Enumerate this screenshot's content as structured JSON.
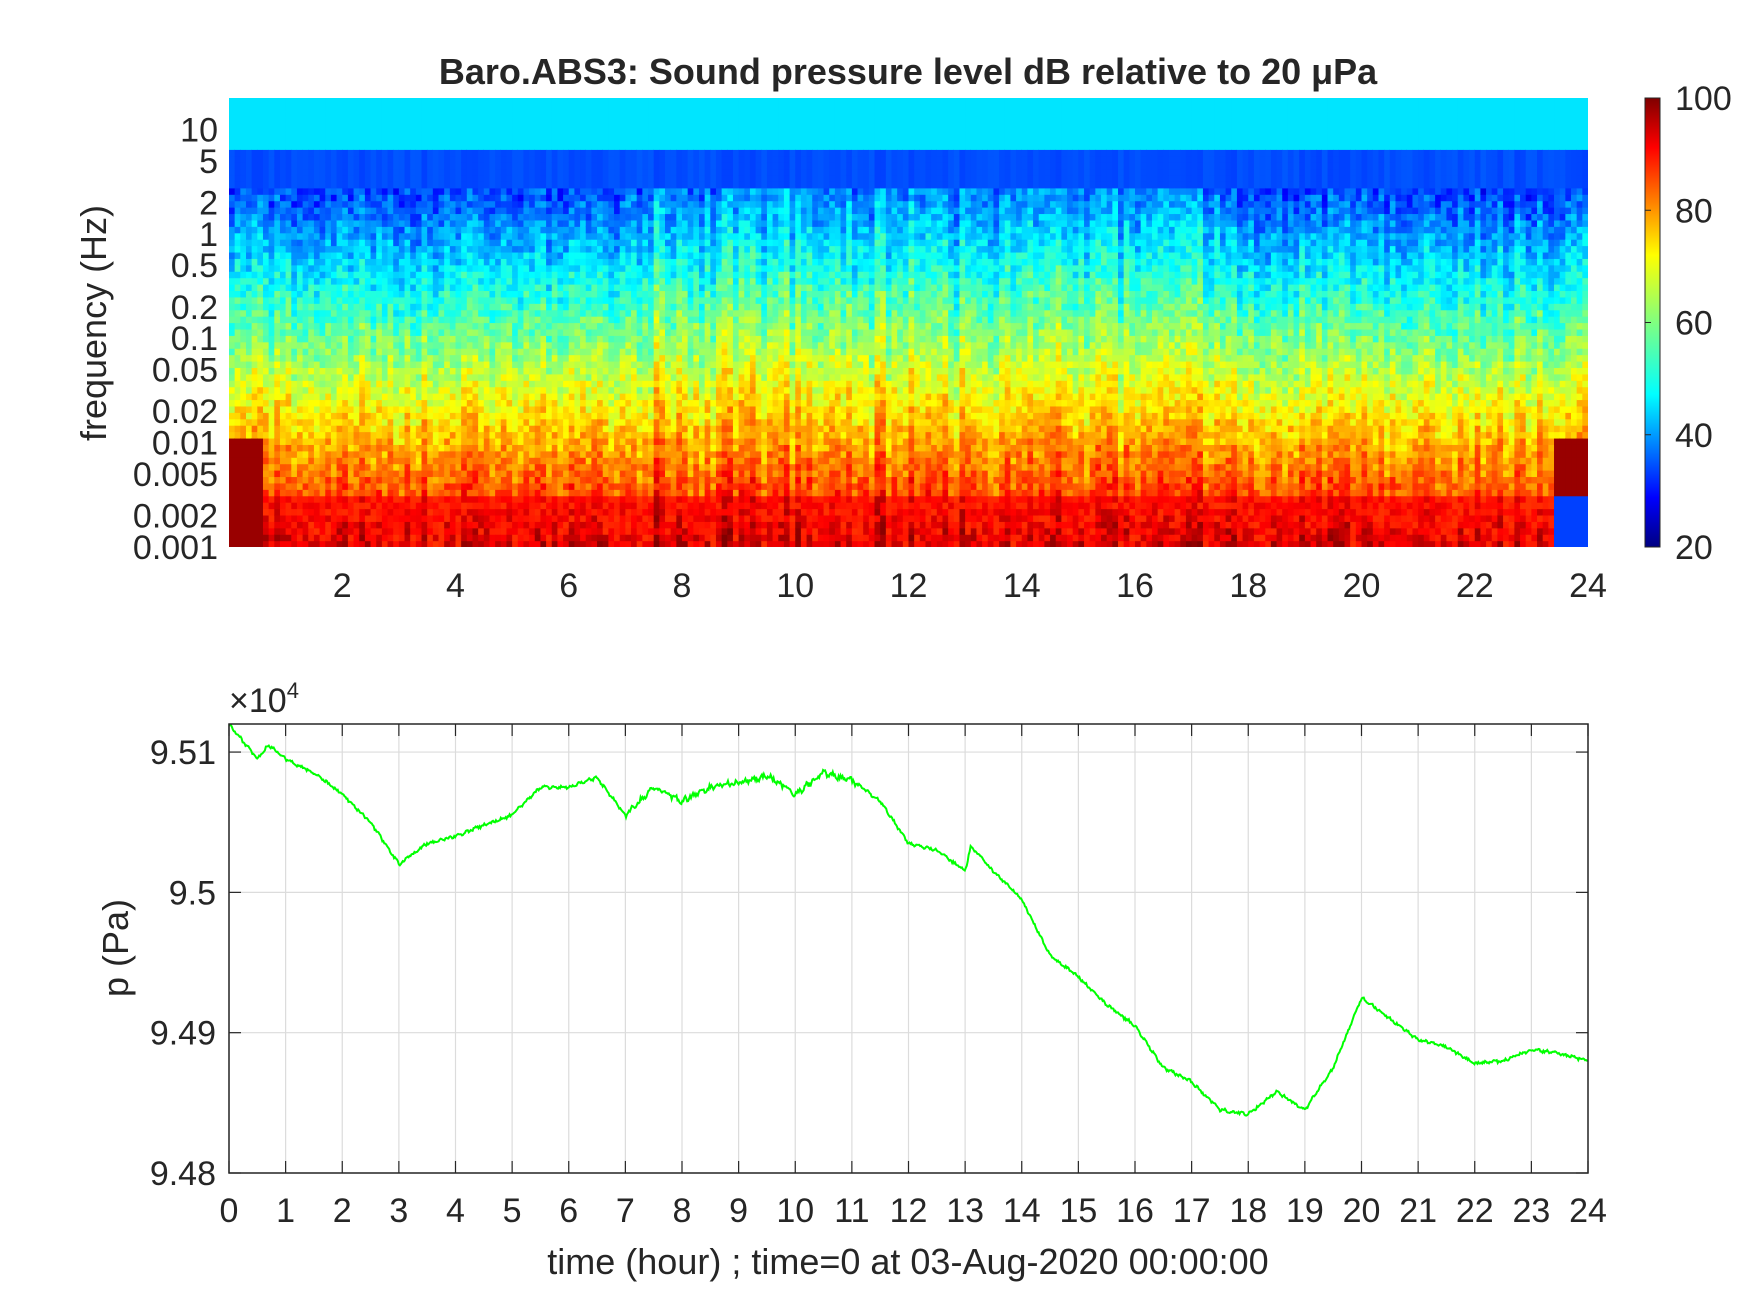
{
  "chart_data": [
    {
      "type": "heatmap",
      "title": "Baro.ABS3: Sound pressure level dB relative to 20 μPa",
      "ylabel": "frequency (Hz)",
      "xlabel": "",
      "y_scale": "log",
      "ylim": [
        0.001,
        20
      ],
      "xlim": [
        0,
        24
      ],
      "x_ticks": [
        "2",
        "4",
        "6",
        "8",
        "10",
        "12",
        "14",
        "16",
        "18",
        "20",
        "22",
        "24"
      ],
      "y_ticks": [
        "0.001",
        "0.002",
        "0.005",
        "0.01",
        "0.02",
        "0.05",
        "0.1",
        "0.2",
        "0.5",
        "1",
        "2",
        "5",
        "10"
      ],
      "colormap": "jet",
      "colorbar": {
        "range": [
          20,
          100
        ],
        "ticks": [
          "20",
          "40",
          "60",
          "80",
          "100"
        ]
      },
      "grid": false
    },
    {
      "type": "line",
      "title": "",
      "xlabel": "time (hour) ; time=0 at 03-Aug-2020 00:00:00",
      "ylabel": "p (Pa)",
      "exponent_label": "×10",
      "exponent_power": "4",
      "xlim": [
        0,
        24
      ],
      "ylim": [
        9.48,
        9.512
      ],
      "x_ticks": [
        "0",
        "1",
        "2",
        "3",
        "4",
        "5",
        "6",
        "7",
        "8",
        "9",
        "10",
        "11",
        "12",
        "13",
        "14",
        "15",
        "16",
        "17",
        "18",
        "19",
        "20",
        "21",
        "22",
        "23",
        "24"
      ],
      "y_ticks": [
        "9.48",
        "9.49",
        "9.5",
        "9.51"
      ],
      "grid": true,
      "line_color": "#00ff00",
      "series": [
        {
          "x": [
            0,
            0.5,
            0.7,
            1,
            1.5,
            2,
            2.5,
            3,
            3.5,
            4,
            4.5,
            5,
            5.5,
            6,
            6.5,
            7,
            7.5,
            8,
            8.5,
            9,
            9.5,
            10,
            10.5,
            11,
            11.5,
            12,
            12.5,
            13,
            13.1,
            13.5,
            14,
            14.5,
            15,
            15.5,
            16,
            16.5,
            17,
            17.5,
            18,
            18.5,
            19,
            19.5,
            20,
            20.5,
            21,
            21.5,
            22,
            22.5,
            23,
            23.5,
            24
          ],
          "y": [
            9.512,
            9.5095,
            9.5105,
            9.5095,
            9.5085,
            9.507,
            9.505,
            9.502,
            9.5035,
            9.504,
            9.5048,
            9.5055,
            9.5075,
            9.5075,
            9.5082,
            9.5055,
            9.5075,
            9.5065,
            9.5075,
            9.5078,
            9.5083,
            9.507,
            9.5085,
            9.508,
            9.5065,
            9.5035,
            9.503,
            9.5015,
            9.5033,
            9.5015,
            9.4995,
            9.4955,
            9.494,
            9.492,
            9.4905,
            9.4875,
            9.4865,
            9.4845,
            9.4842,
            9.4858,
            9.4845,
            9.4875,
            9.4925,
            9.491,
            9.4895,
            9.489,
            9.4878,
            9.488,
            9.4888,
            9.4885,
            9.488
          ]
        }
      ]
    }
  ]
}
